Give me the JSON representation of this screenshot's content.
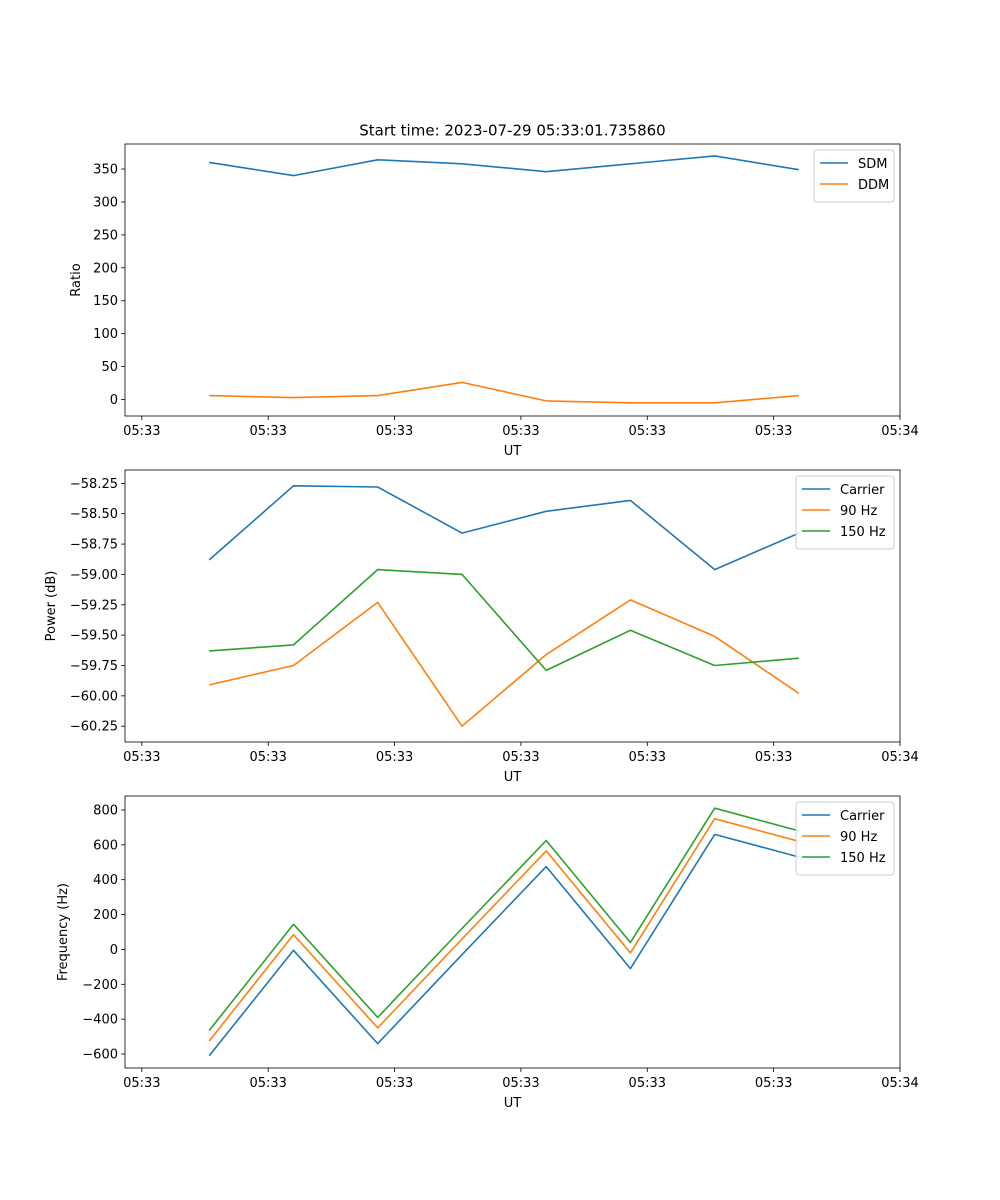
{
  "figure": {
    "title": "Start time: 2023-07-29 05:33:01.735860"
  },
  "chart_data": [
    {
      "type": "line",
      "xlabel": "UT",
      "ylabel": "Ratio",
      "xlim": [
        0,
        9.2
      ],
      "ylim": [
        -25,
        388
      ],
      "x": [
        1,
        2,
        3,
        4,
        5,
        6,
        7,
        8
      ],
      "xtick_values": [
        0.2,
        1.7,
        3.2,
        4.7,
        6.2,
        7.7,
        9.2
      ],
      "xtick_labels": [
        "05:33",
        "05:33",
        "05:33",
        "05:33",
        "05:33",
        "05:33",
        "05:34"
      ],
      "yticks": [
        0,
        50,
        100,
        150,
        200,
        250,
        300,
        350
      ],
      "legend": "top-right",
      "series": [
        {
          "name": "SDM",
          "color": "#1f77b4",
          "values": [
            360,
            340,
            364,
            358,
            346,
            358,
            370,
            349
          ]
        },
        {
          "name": "DDM",
          "color": "#ff7f0e",
          "values": [
            6,
            3,
            6,
            26,
            -2,
            -5,
            -5,
            6
          ]
        }
      ]
    },
    {
      "type": "line",
      "xlabel": "UT",
      "ylabel": "Power (dB)",
      "xlim": [
        0,
        9.2
      ],
      "ylim": [
        -60.38,
        -58.14
      ],
      "x": [
        1,
        2,
        3,
        4,
        5,
        6,
        7,
        8
      ],
      "xtick_values": [
        0.2,
        1.7,
        3.2,
        4.7,
        6.2,
        7.7,
        9.2
      ],
      "xtick_labels": [
        "05:33",
        "05:33",
        "05:33",
        "05:33",
        "05:33",
        "05:33",
        "05:34"
      ],
      "yticks": [
        -60.25,
        -60.0,
        -59.75,
        -59.5,
        -59.25,
        -59.0,
        -58.75,
        -58.5,
        -58.25
      ],
      "ytick_labels": [
        "−60.25",
        "−60.00",
        "−59.75",
        "−59.50",
        "−59.25",
        "−59.00",
        "−58.75",
        "−58.50",
        "−58.25"
      ],
      "legend": "top-right",
      "series": [
        {
          "name": "Carrier",
          "color": "#1f77b4",
          "values": [
            -58.88,
            -58.27,
            -58.28,
            -58.66,
            -58.48,
            -58.39,
            -58.96,
            -58.66
          ]
        },
        {
          "name": "90 Hz",
          "color": "#ff7f0e",
          "values": [
            -59.91,
            -59.75,
            -59.23,
            -60.25,
            -59.66,
            -59.21,
            -59.51,
            -59.98
          ]
        },
        {
          "name": "150 Hz",
          "color": "#2ca02c",
          "values": [
            -59.63,
            -59.58,
            -58.96,
            -59.0,
            -59.79,
            -59.46,
            -59.75,
            -59.69
          ]
        }
      ]
    },
    {
      "type": "line",
      "xlabel": "UT",
      "ylabel": "Frequency (Hz)",
      "xlim": [
        0,
        9.2
      ],
      "ylim": [
        -680,
        880
      ],
      "x": [
        1,
        2,
        3,
        4,
        5,
        6,
        7,
        8
      ],
      "xtick_values": [
        0.2,
        1.7,
        3.2,
        4.7,
        6.2,
        7.7,
        9.2
      ],
      "xtick_labels": [
        "05:33",
        "05:33",
        "05:33",
        "05:33",
        "05:33",
        "05:33",
        "05:34"
      ],
      "yticks": [
        -600,
        -400,
        -200,
        0,
        200,
        400,
        600,
        800
      ],
      "ytick_labels": [
        "−600",
        "−400",
        "−200",
        "0",
        "200",
        "400",
        "600",
        "800"
      ],
      "legend": "top-right",
      "series": [
        {
          "name": "Carrier",
          "color": "#1f77b4",
          "values": [
            -610,
            -5,
            -540,
            -30,
            475,
            -110,
            660,
            530
          ]
        },
        {
          "name": "90 Hz",
          "color": "#ff7f0e",
          "values": [
            -525,
            85,
            -450,
            60,
            565,
            -20,
            750,
            620
          ]
        },
        {
          "name": "150 Hz",
          "color": "#2ca02c",
          "values": [
            -465,
            145,
            -390,
            120,
            625,
            40,
            810,
            680
          ]
        }
      ]
    }
  ]
}
